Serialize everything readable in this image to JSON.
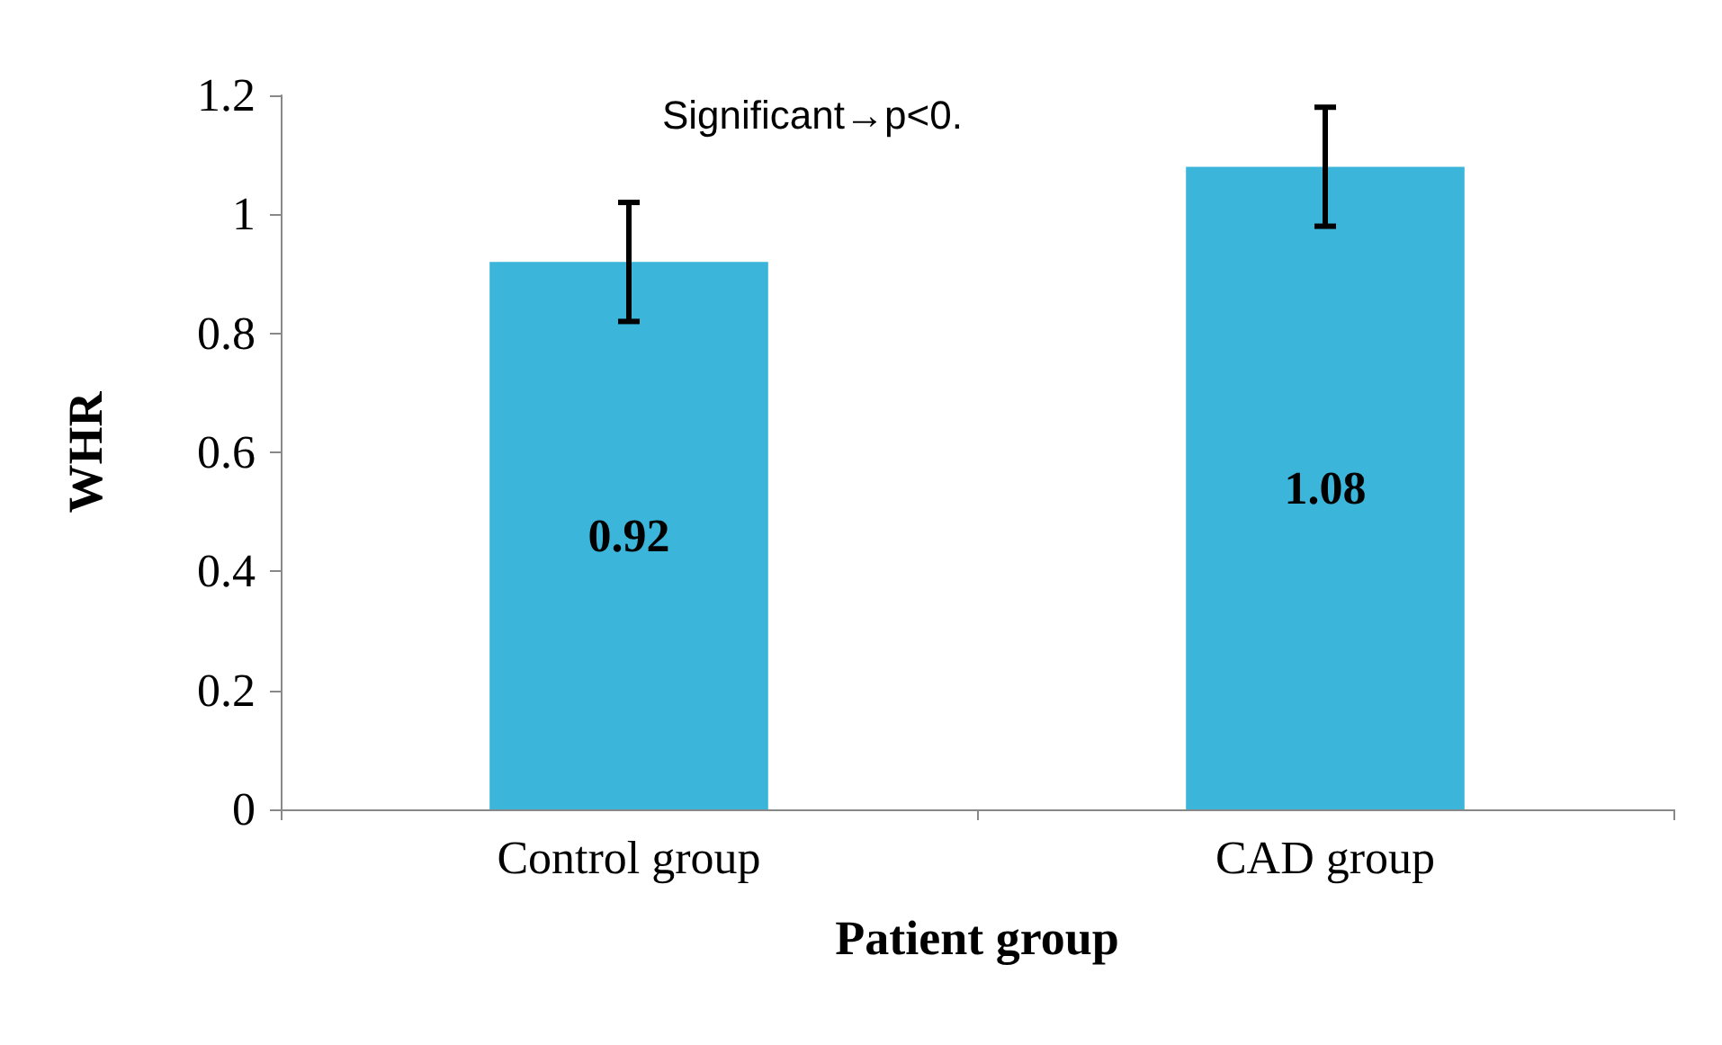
{
  "chart_data": {
    "type": "bar",
    "xlabel": "Patient group",
    "ylabel": "WHR",
    "annotations": [
      "Significant→p<0."
    ],
    "categories": [
      "Control group",
      "CAD group"
    ],
    "values": [
      0.92,
      1.08
    ],
    "color": "#3bb5da",
    "errors": [
      0.1,
      0.1
    ],
    "data_labels": true,
    "ylim": [
      0,
      1.2
    ],
    "yticks": [
      0,
      0.2,
      0.4,
      0.6,
      0.8,
      1,
      1.2
    ],
    "grid": false
  }
}
